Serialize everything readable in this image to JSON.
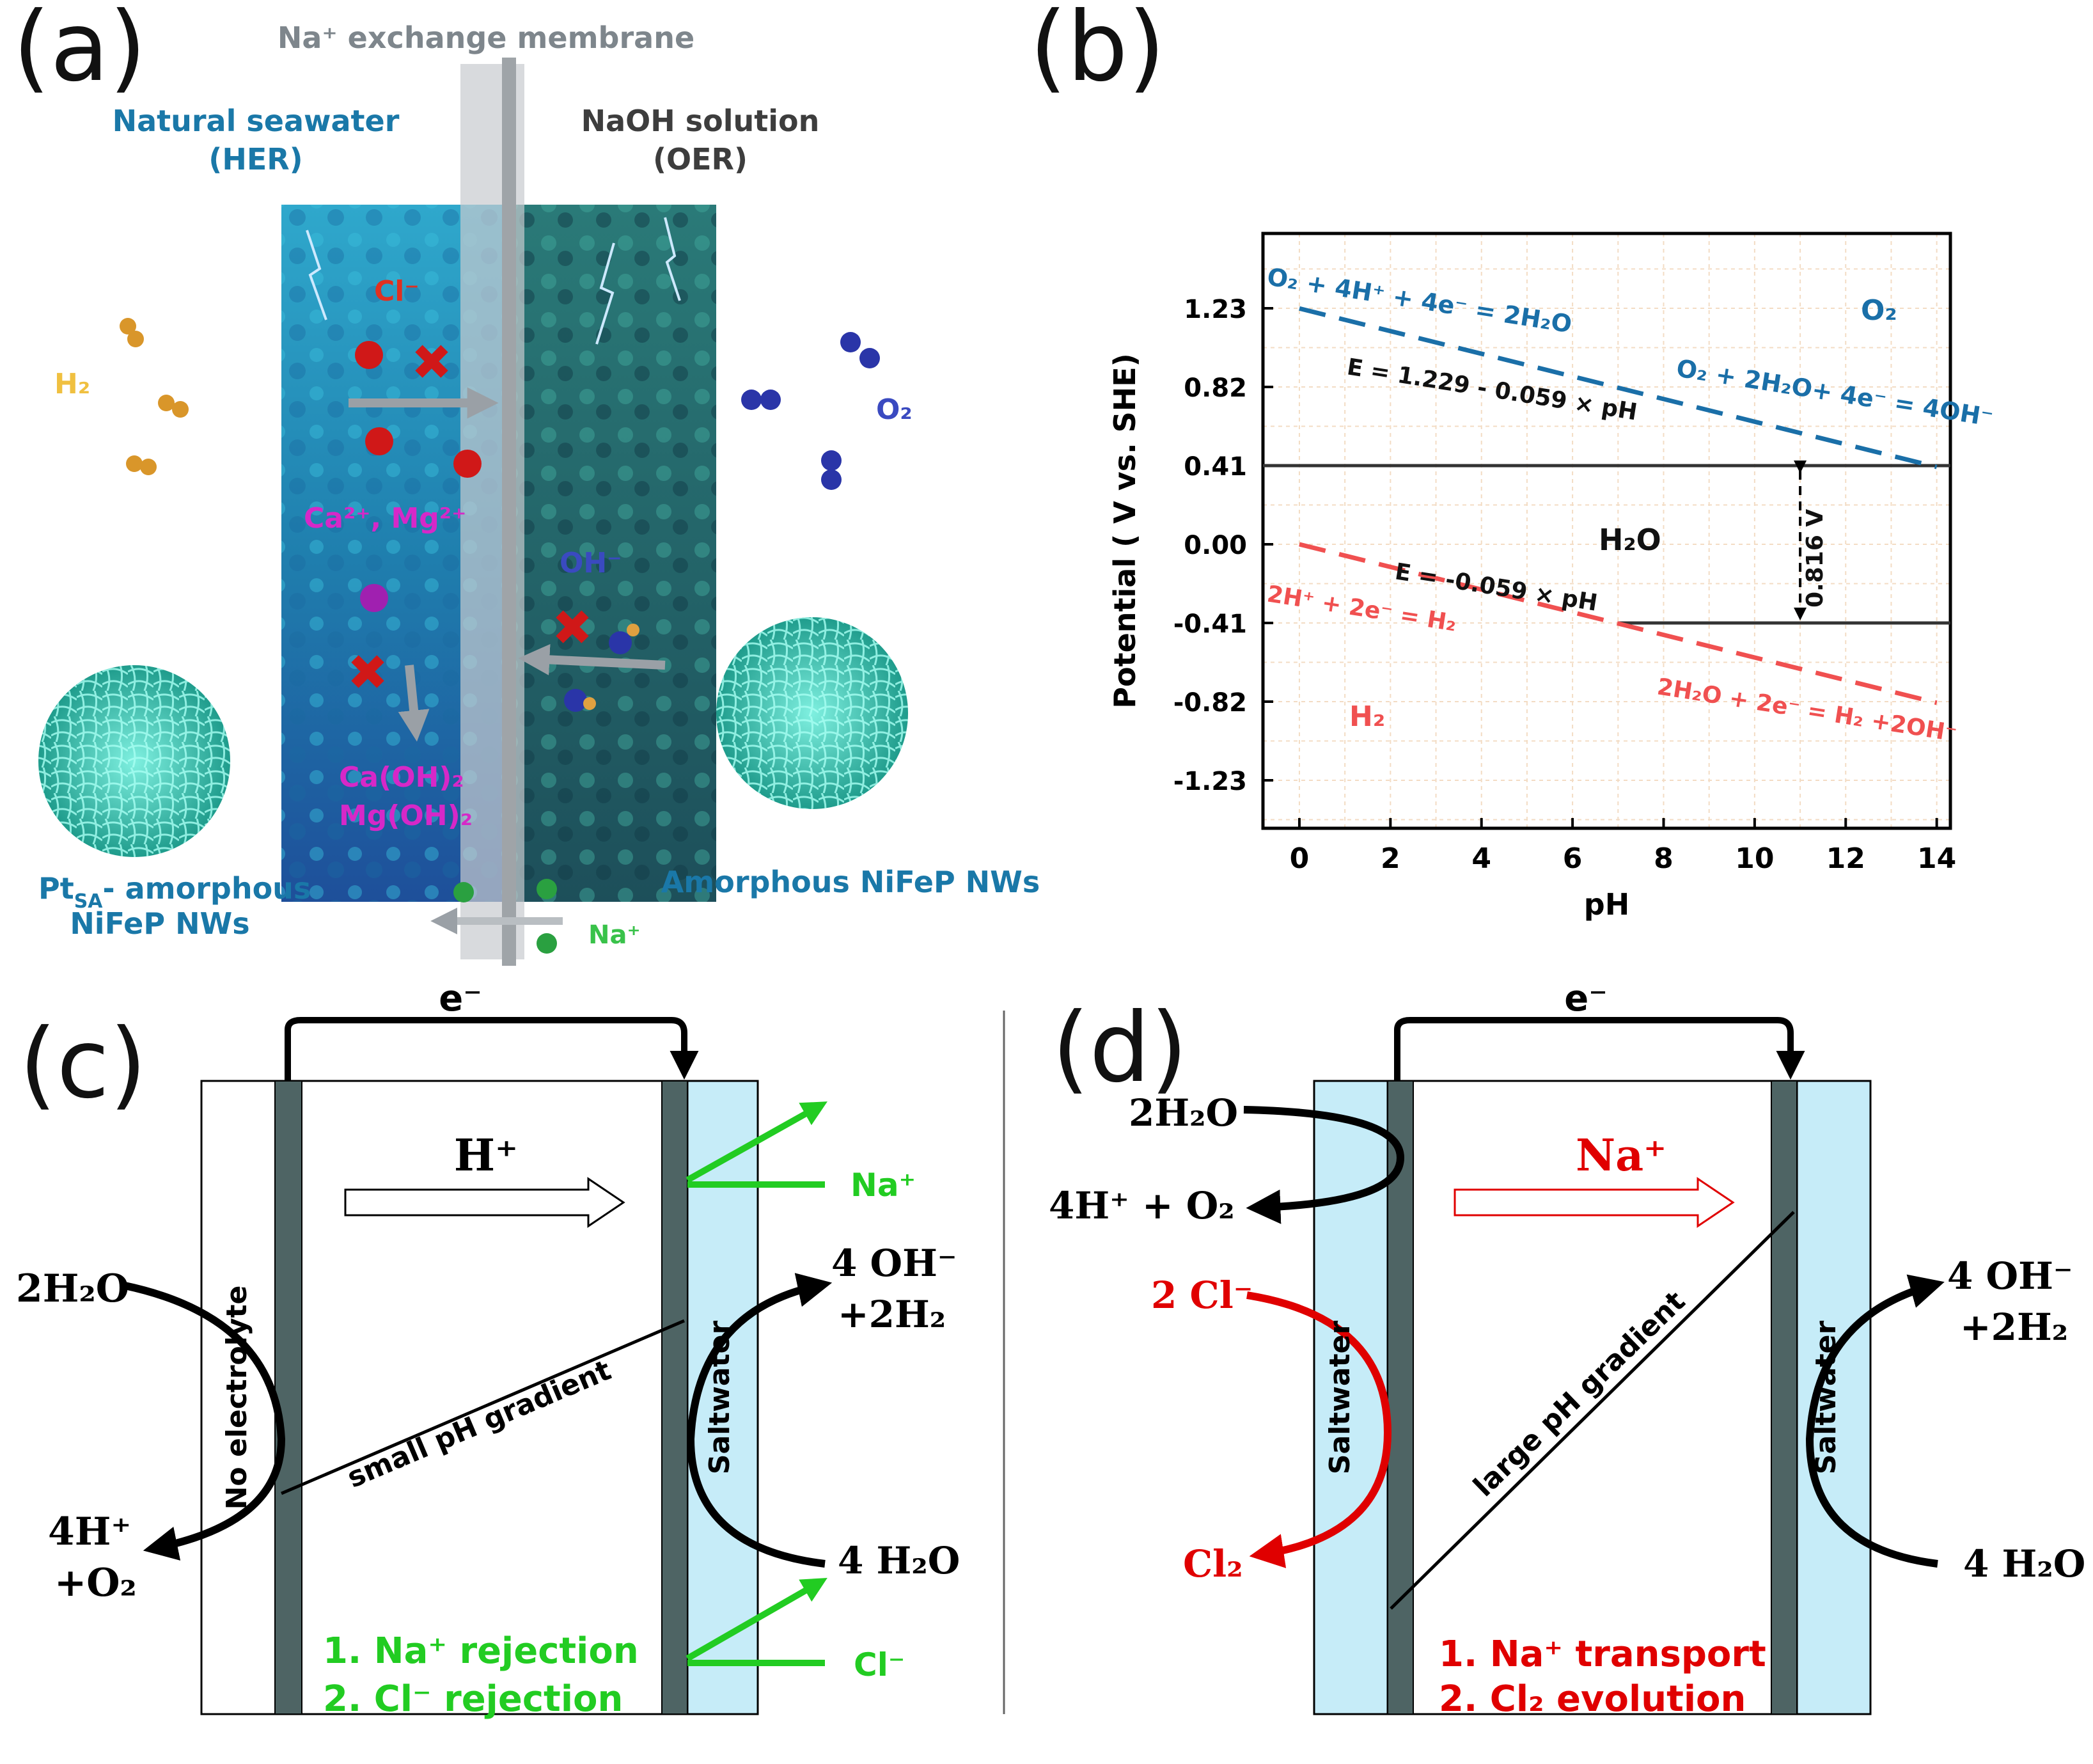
{
  "panels": {
    "a": "(a)",
    "b": "(b)",
    "c": "(c)",
    "d": "(d)"
  },
  "panel_a": {
    "membrane": "Na⁺ exchange membrane",
    "left_title": [
      "Natural seawater",
      "(HER)"
    ],
    "right_title": [
      "NaOH solution",
      "(OER)"
    ],
    "h2": "H₂",
    "o2": "O₂",
    "cl": "Cl⁻",
    "ca_mg": "Ca²⁺, Mg²⁺",
    "oh": "OH⁻",
    "precip": [
      "Ca(OH)₂",
      "Mg(OH)₂"
    ],
    "na": "Na⁺",
    "left_catalyst": [
      "Pt",
      "SA",
      "- amorphous",
      "NiFeP NWs"
    ],
    "right_catalyst": "Amorphous NiFeP NWs",
    "colors": {
      "blue_label": "#1a78a8",
      "magenta": "#d628c8",
      "red": "#e03020",
      "gold": "#e8b030",
      "indigo": "#3a4ac0",
      "green": "#39c24a"
    }
  },
  "chart_data": {
    "type": "line",
    "xlabel": "pH",
    "ylabel": "Potential ( V vs. SHE)",
    "xlim": [
      -0.8,
      14.3
    ],
    "ylim": [
      -1.48,
      1.62
    ],
    "xticks": [
      "0",
      "2",
      "4",
      "6",
      "8",
      "10",
      "12",
      "14"
    ],
    "yticks": [
      "1.23",
      "0.82",
      "0.41",
      "0.00",
      "-0.41",
      "-0.82",
      "-1.23"
    ],
    "ytick_values": [
      1.23,
      0.82,
      0.41,
      0.0,
      -0.41,
      -0.82,
      -1.23
    ],
    "grid": true,
    "series": [
      {
        "name": "O₂ + 4H⁺ + 4e⁻ = 2H₂O",
        "color": "#1a6fa8",
        "x": [
          0,
          14
        ],
        "y": [
          1.229,
          0.403
        ]
      },
      {
        "name": "2H⁺ + 2e⁻ = H₂",
        "color": "#f05050",
        "x": [
          0,
          14
        ],
        "y": [
          0.0,
          -0.826
        ]
      }
    ],
    "hlines": [
      {
        "y": 0.41,
        "x": [
          -0.8,
          14.3
        ]
      },
      {
        "y": -0.41,
        "x": [
          7,
          14.3
        ]
      }
    ],
    "annotations": {
      "o2_eq_acid": "O₂ + 4H⁺ + 4e⁻ = 2H₂O",
      "o2_eq_base": "O₂ + 2H₂O+ 4e⁻ = 4OH⁻",
      "e_o2": "E = 1.229 - 0.059 × pH",
      "o2": "O₂",
      "h2o": "H₂O",
      "gap": "0.816 V",
      "e_h2": "E = -0.059 × pH",
      "h2_eq_acid": "2H⁺ + 2e⁻ = H₂",
      "h2_eq_base": "2H₂O + 2e⁻ = H₂ +2OH⁻",
      "h2": "H₂"
    }
  },
  "panel_c": {
    "electron": "e⁻",
    "proton": "H⁺",
    "na": "Na⁺",
    "cl": "Cl⁻",
    "left_in": "2H₂O",
    "left_out": [
      "4H⁺",
      "+O₂"
    ],
    "right_out": [
      "4 OH⁻",
      "+2H₂"
    ],
    "right_in": "4 H₂O",
    "left_chamber": "No electrolyte",
    "right_chamber": "Saltwater",
    "gradient": "small pH gradient",
    "notes": [
      "1. Na⁺ rejection",
      "2. Cl⁻ rejection"
    ]
  },
  "panel_d": {
    "electron": "e⁻",
    "na": "Na⁺",
    "left_in": "2H₂O",
    "left_out": "4H⁺ + O₂",
    "cl_in": "2 Cl⁻",
    "cl_out": "Cl₂",
    "right_out": [
      "4 OH⁻",
      "+2H₂"
    ],
    "right_in": "4 H₂O",
    "left_chamber": "Saltwater",
    "right_chamber": "Saltwater",
    "gradient": "large pH gradient",
    "notes": [
      "1. Na⁺ transport",
      "2. Cl₂ evolution"
    ]
  }
}
